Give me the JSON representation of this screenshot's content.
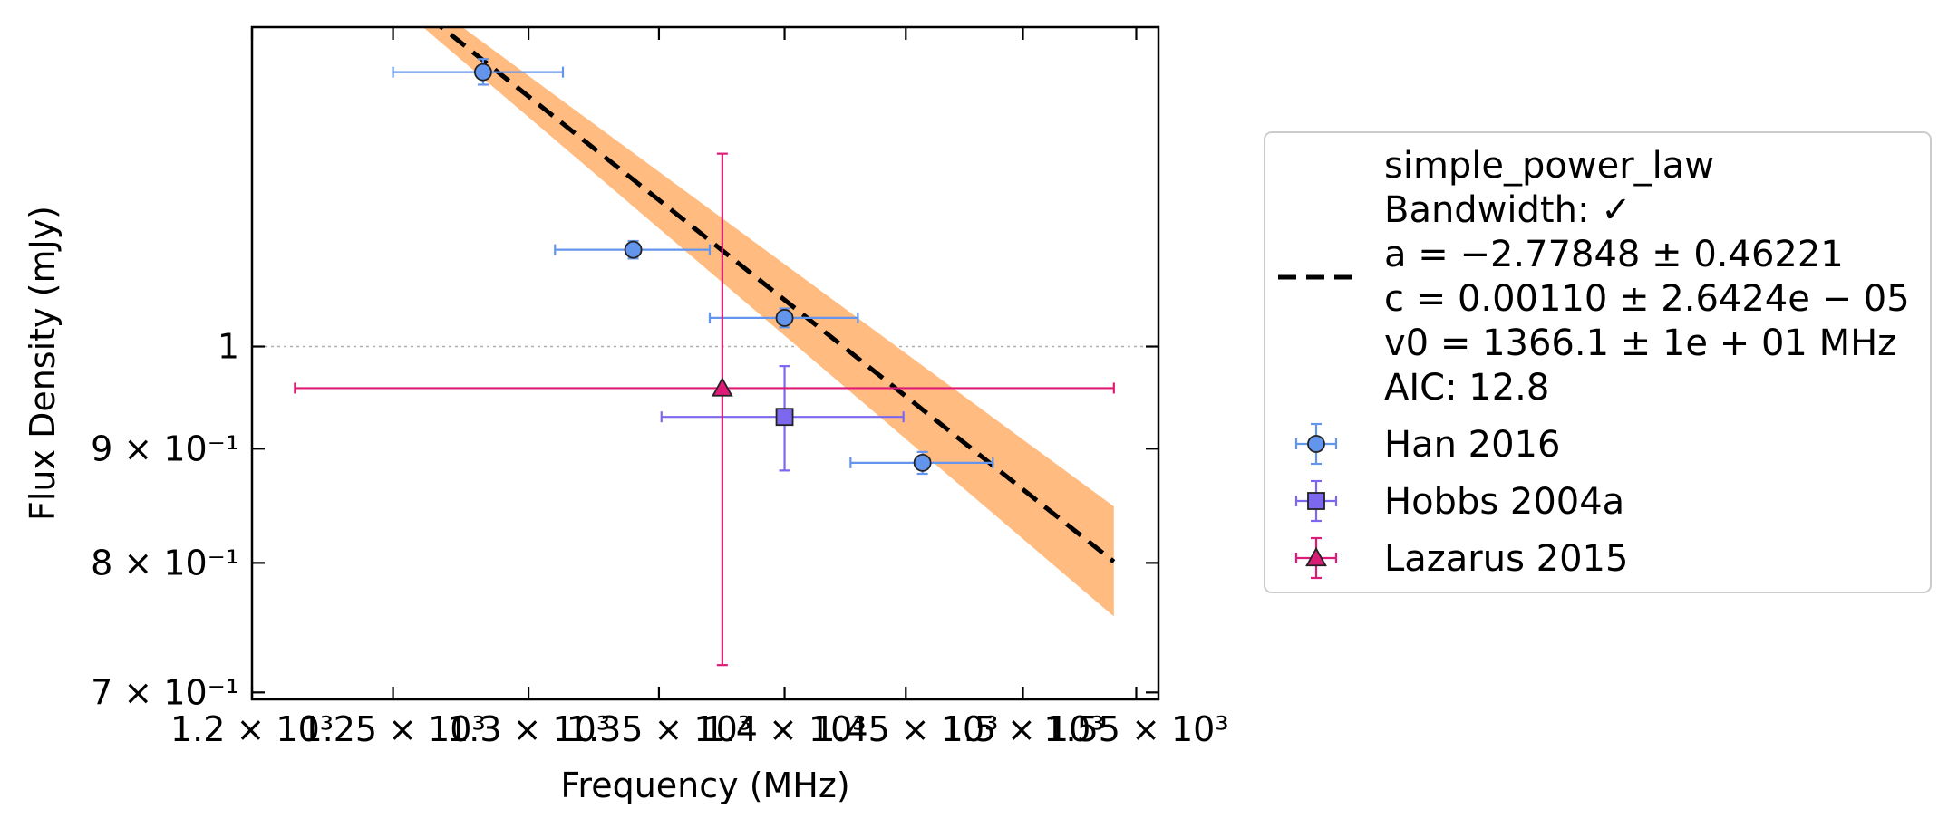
{
  "chart_data": {
    "type": "scatter",
    "xlabel": "Frequency (MHz)",
    "ylabel": "Flux Density (mJy)",
    "x_scale": "log",
    "y_scale": "log",
    "xlim": [
      1200,
      1560
    ],
    "ylim": [
      0.695,
      1.39
    ],
    "x_ticks": [
      {
        "value": 1200,
        "label": "1.2 × 10³"
      },
      {
        "value": 1250,
        "label": "1.25 × 10³"
      },
      {
        "value": 1300,
        "label": "1.3 × 10³"
      },
      {
        "value": 1350,
        "label": "1.35 × 10³"
      },
      {
        "value": 1400,
        "label": "1.4 × 10³"
      },
      {
        "value": 1450,
        "label": "1.45 × 10³"
      },
      {
        "value": 1500,
        "label": "1.5 × 10³"
      },
      {
        "value": 1550,
        "label": "1.55 × 10³"
      }
    ],
    "y_ticks": [
      {
        "value": 0.7,
        "label": "7 × 10⁻¹"
      },
      {
        "value": 0.8,
        "label": "8 × 10⁻¹"
      },
      {
        "value": 0.9,
        "label": "9 × 10⁻¹"
      },
      {
        "value": 1.0,
        "label": "1"
      }
    ],
    "reference_line_y": 1.0,
    "fit": {
      "model": "simple_power_law",
      "legend_lines": [
        "simple_power_law",
        "Bandwidth: ✓",
        "a = −2.77848 ± 0.46221",
        "c = 0.00110 ± 2.6424e − 05",
        "v0 = 1366.1 ± 1e + 01 MHz",
        "AIC: 12.8"
      ],
      "a": -2.77848,
      "v0": 1366.1,
      "x_range": [
        1255,
        1540
      ],
      "line_y": [
        1.43,
        0.801
      ],
      "band_upper": [
        1.45,
        0.848
      ],
      "band_lower": [
        1.41,
        0.757
      ],
      "line_color": "#000000",
      "band_color": "#ffbb80"
    },
    "series": [
      {
        "name": "Han 2016",
        "marker": "circle",
        "color": "#6495ed",
        "points": [
          {
            "x": 1283,
            "y": 1.327,
            "xerr": [
              1250,
              1313
            ],
            "yerr": [
              1.31,
              1.345
            ]
          },
          {
            "x": 1340,
            "y": 1.105,
            "xerr": [
              1310,
              1370
            ],
            "yerr": [
              1.095,
              1.115
            ]
          },
          {
            "x": 1400,
            "y": 1.03,
            "xerr": [
              1370,
              1430
            ],
            "yerr": [
              1.02,
              1.04
            ]
          },
          {
            "x": 1457,
            "y": 0.887,
            "xerr": [
              1427,
              1487
            ],
            "yerr": [
              0.877,
              0.897
            ]
          }
        ]
      },
      {
        "name": "Hobbs 2004a",
        "marker": "square",
        "color": "#7b68ee",
        "points": [
          {
            "x": 1400,
            "y": 0.93,
            "xerr": [
              1351,
              1449
            ],
            "yerr": [
              0.88,
              0.98
            ]
          }
        ]
      },
      {
        "name": "Lazarus 2015",
        "marker": "triangle",
        "color": "#dd1c77",
        "points": [
          {
            "x": 1375,
            "y": 0.958,
            "xerr": [
              1215,
              1540
            ],
            "yerr": [
              0.72,
              1.22
            ]
          }
        ]
      }
    ],
    "legend_location": "right, outside plot"
  }
}
